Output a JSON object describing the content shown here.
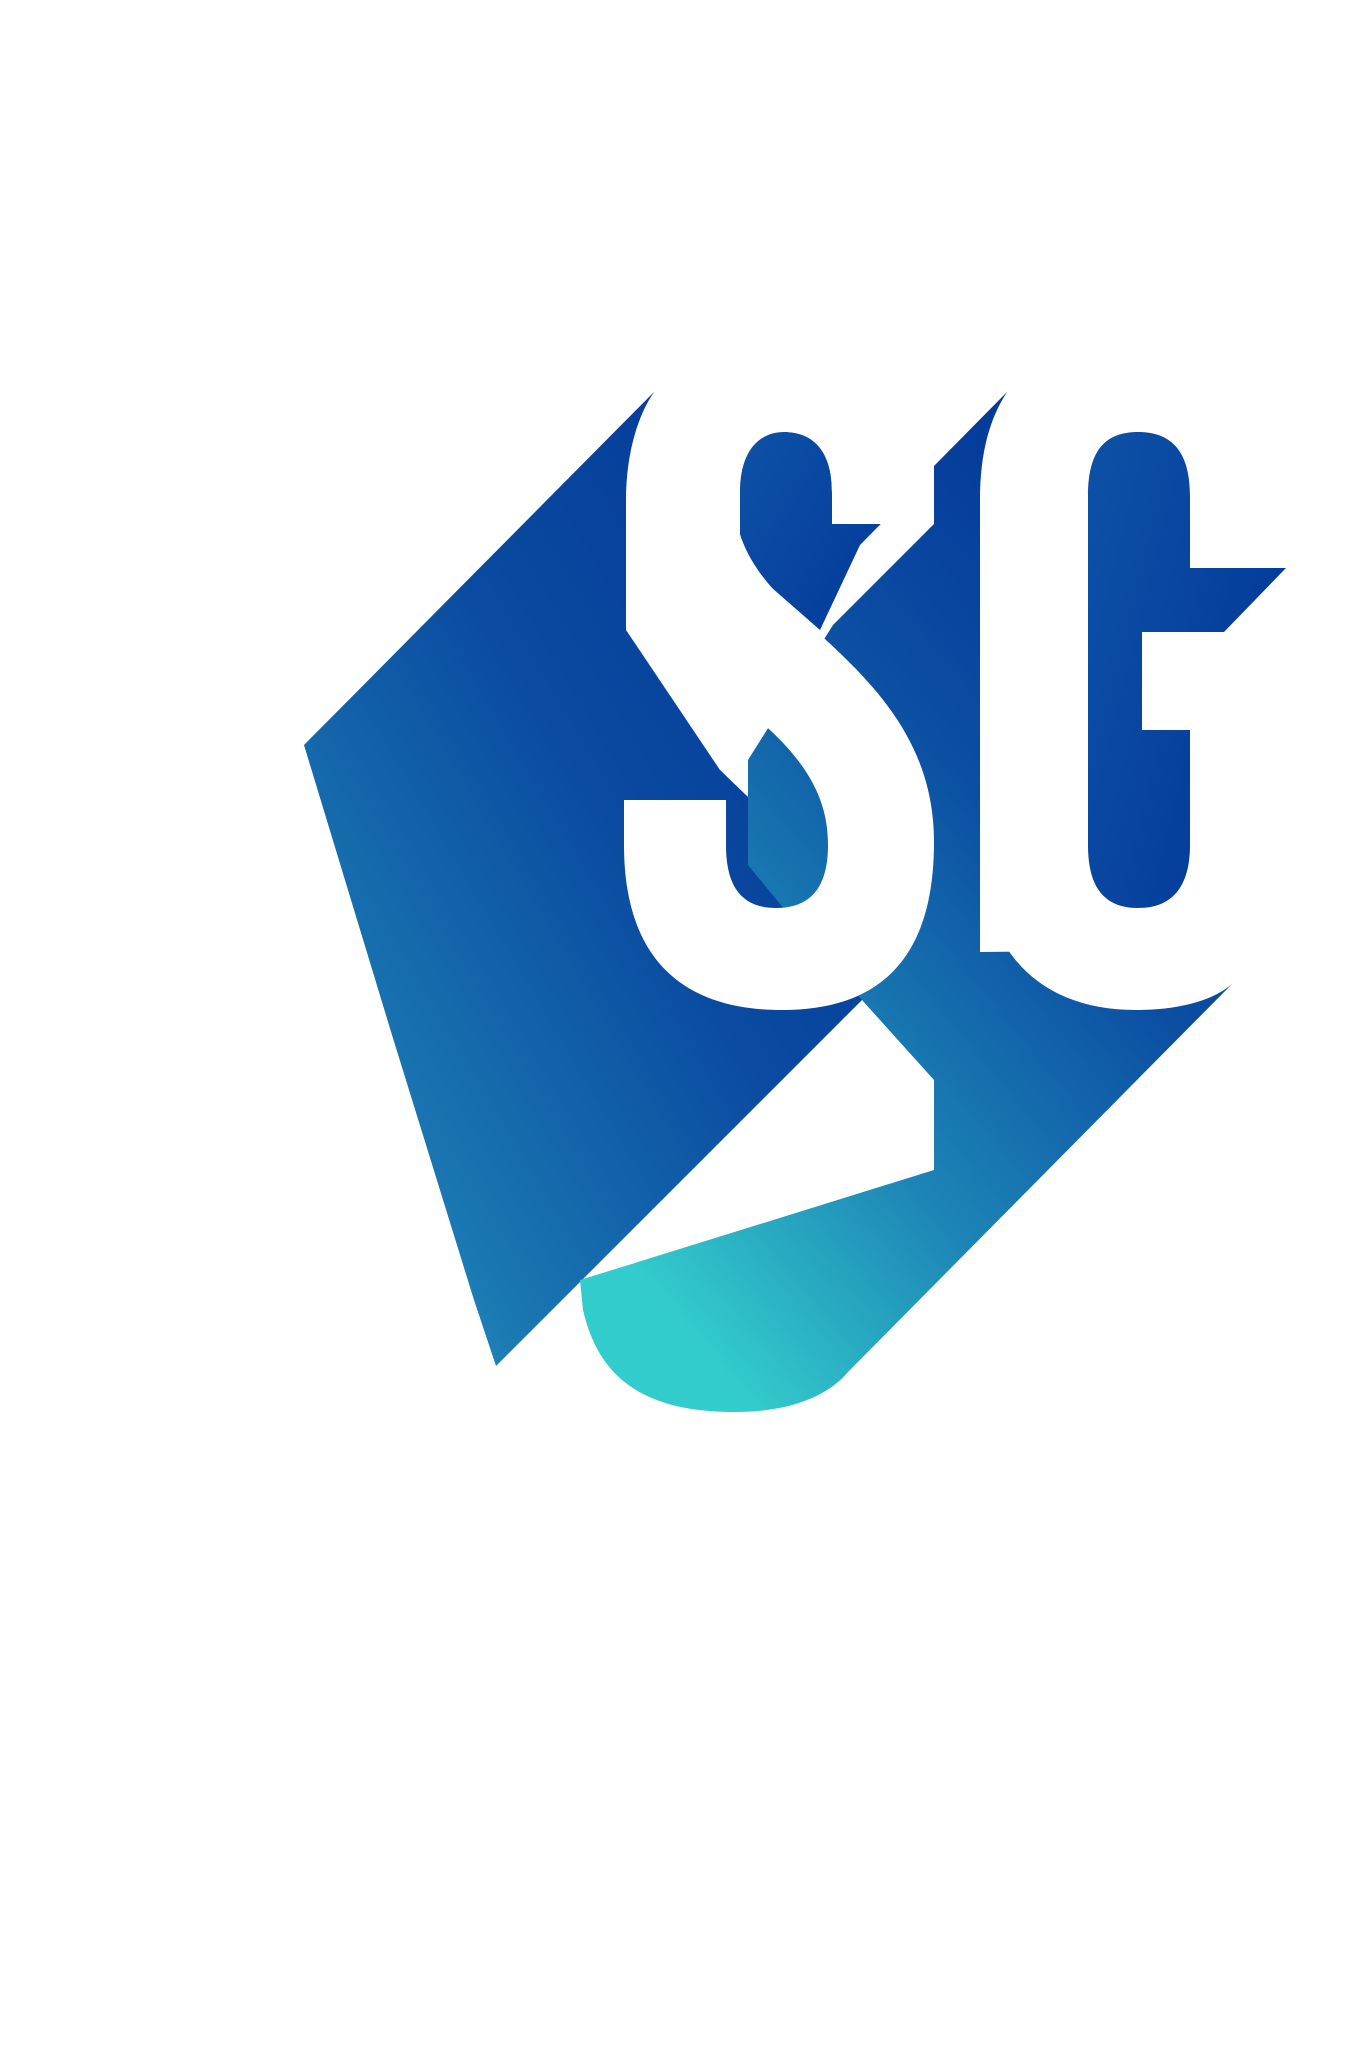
{
  "logo": {
    "letters": "SG",
    "colors": {
      "background": "#ffffff",
      "letter_fill": "#ffffff",
      "shadow_dark": "#033598",
      "shadow_mid": "#1a78b2",
      "shadow_light": "#33cccc"
    }
  }
}
